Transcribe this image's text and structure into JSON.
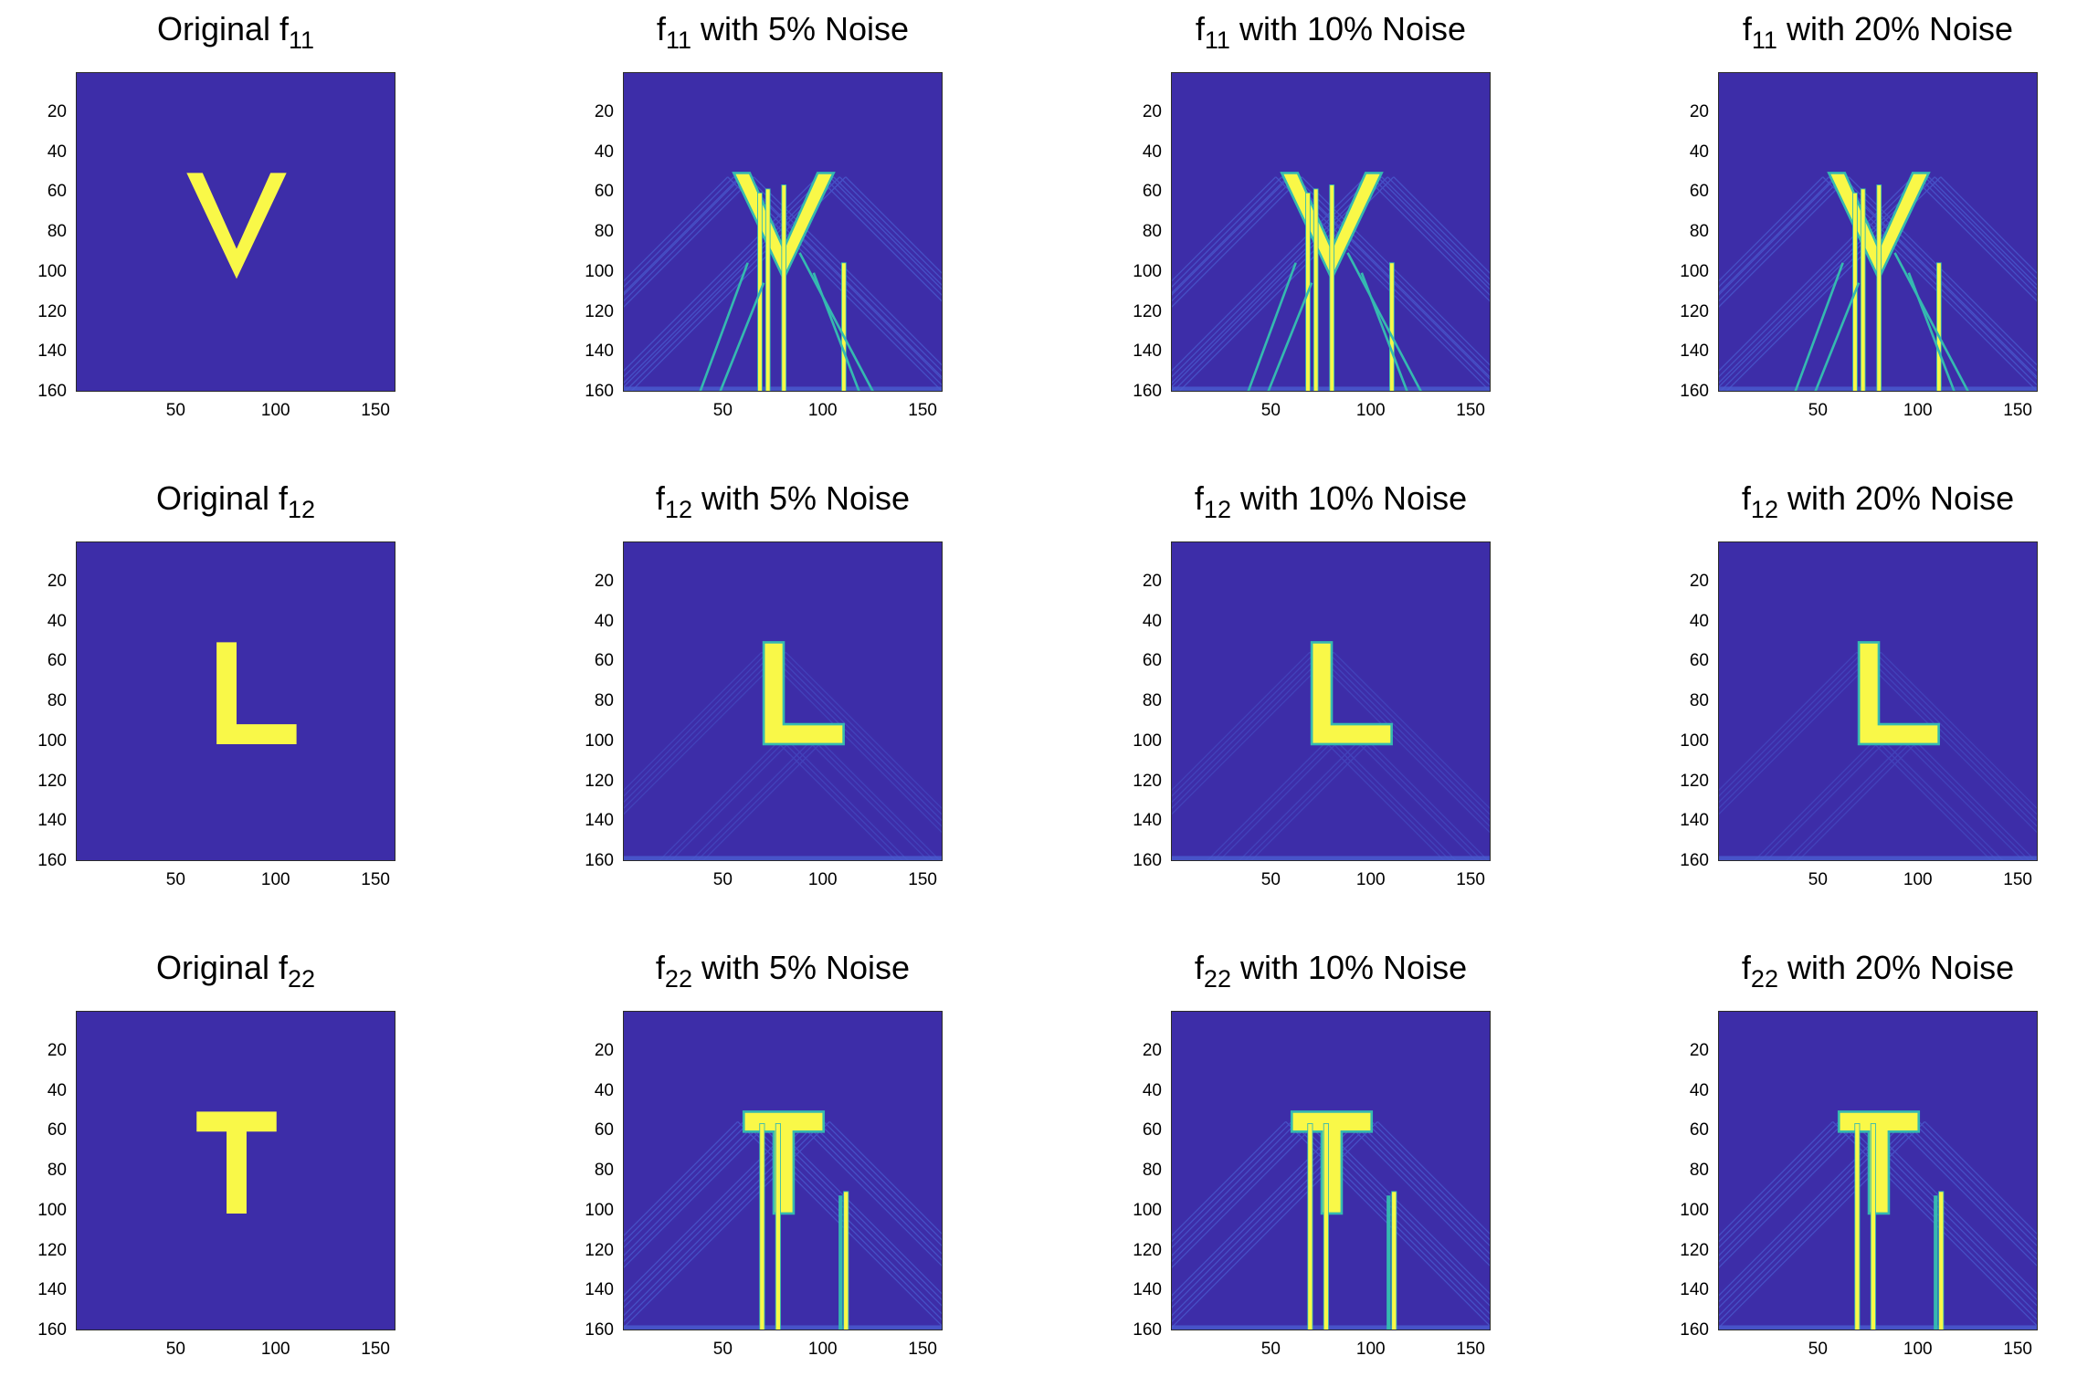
{
  "colors": {
    "background": "#3d2da8",
    "shape": "#f9f848",
    "edge": "#35b9b0",
    "artifact": "#4a5cd0"
  },
  "chart_data": [
    {
      "type": "heatmap",
      "row": 0,
      "col": 0,
      "shape": "V",
      "artifacts": "none",
      "title_pre": "Original f",
      "title_sub": "11",
      "title_post": "",
      "xlim": [
        0,
        160
      ],
      "ylim": [
        0,
        160
      ],
      "xticks": [
        "50",
        "100",
        "150"
      ],
      "yticks": [
        "20",
        "40",
        "60",
        "80",
        "100",
        "120",
        "140",
        "160"
      ]
    },
    {
      "type": "heatmap",
      "row": 0,
      "col": 1,
      "shape": "V",
      "artifacts": "strong",
      "title_pre": "f",
      "title_sub": "11",
      "title_post": " with 5% Noise",
      "xlim": [
        0,
        160
      ],
      "ylim": [
        0,
        160
      ],
      "xticks": [
        "50",
        "100",
        "150"
      ],
      "yticks": [
        "20",
        "40",
        "60",
        "80",
        "100",
        "120",
        "140",
        "160"
      ]
    },
    {
      "type": "heatmap",
      "row": 0,
      "col": 2,
      "shape": "V",
      "artifacts": "strong",
      "title_pre": "f",
      "title_sub": "11",
      "title_post": " with 10% Noise",
      "xlim": [
        0,
        160
      ],
      "ylim": [
        0,
        160
      ],
      "xticks": [
        "50",
        "100",
        "150"
      ],
      "yticks": [
        "20",
        "40",
        "60",
        "80",
        "100",
        "120",
        "140",
        "160"
      ]
    },
    {
      "type": "heatmap",
      "row": 0,
      "col": 3,
      "shape": "V",
      "artifacts": "strong",
      "title_pre": "f",
      "title_sub": "11",
      "title_post": " with 20% Noise",
      "xlim": [
        0,
        160
      ],
      "ylim": [
        0,
        160
      ],
      "xticks": [
        "50",
        "100",
        "150"
      ],
      "yticks": [
        "20",
        "40",
        "60",
        "80",
        "100",
        "120",
        "140",
        "160"
      ]
    },
    {
      "type": "heatmap",
      "row": 1,
      "col": 0,
      "shape": "L",
      "artifacts": "none",
      "title_pre": "Original f",
      "title_sub": "12",
      "title_post": "",
      "xlim": [
        0,
        160
      ],
      "ylim": [
        0,
        160
      ],
      "xticks": [
        "50",
        "100",
        "150"
      ],
      "yticks": [
        "20",
        "40",
        "60",
        "80",
        "100",
        "120",
        "140",
        "160"
      ]
    },
    {
      "type": "heatmap",
      "row": 1,
      "col": 1,
      "shape": "L",
      "artifacts": "faint",
      "title_pre": "f",
      "title_sub": "12",
      "title_post": " with 5% Noise",
      "xlim": [
        0,
        160
      ],
      "ylim": [
        0,
        160
      ],
      "xticks": [
        "50",
        "100",
        "150"
      ],
      "yticks": [
        "20",
        "40",
        "60",
        "80",
        "100",
        "120",
        "140",
        "160"
      ]
    },
    {
      "type": "heatmap",
      "row": 1,
      "col": 2,
      "shape": "L",
      "artifacts": "faint",
      "title_pre": "f",
      "title_sub": "12",
      "title_post": " with 10% Noise",
      "xlim": [
        0,
        160
      ],
      "ylim": [
        0,
        160
      ],
      "xticks": [
        "50",
        "100",
        "150"
      ],
      "yticks": [
        "20",
        "40",
        "60",
        "80",
        "100",
        "120",
        "140",
        "160"
      ]
    },
    {
      "type": "heatmap",
      "row": 1,
      "col": 3,
      "shape": "L",
      "artifacts": "faint",
      "title_pre": "f",
      "title_sub": "12",
      "title_post": " with 20% Noise",
      "xlim": [
        0,
        160
      ],
      "ylim": [
        0,
        160
      ],
      "xticks": [
        "50",
        "100",
        "150"
      ],
      "yticks": [
        "20",
        "40",
        "60",
        "80",
        "100",
        "120",
        "140",
        "160"
      ]
    },
    {
      "type": "heatmap",
      "row": 2,
      "col": 0,
      "shape": "T",
      "artifacts": "none",
      "title_pre": "Original f",
      "title_sub": "22",
      "title_post": "",
      "xlim": [
        0,
        160
      ],
      "ylim": [
        0,
        160
      ],
      "xticks": [
        "50",
        "100",
        "150"
      ],
      "yticks": [
        "20",
        "40",
        "60",
        "80",
        "100",
        "120",
        "140",
        "160"
      ]
    },
    {
      "type": "heatmap",
      "row": 2,
      "col": 1,
      "shape": "T",
      "artifacts": "strong",
      "title_pre": "f",
      "title_sub": "22",
      "title_post": " with 5% Noise",
      "xlim": [
        0,
        160
      ],
      "ylim": [
        0,
        160
      ],
      "xticks": [
        "50",
        "100",
        "150"
      ],
      "yticks": [
        "20",
        "40",
        "60",
        "80",
        "100",
        "120",
        "140",
        "160"
      ]
    },
    {
      "type": "heatmap",
      "row": 2,
      "col": 2,
      "shape": "T",
      "artifacts": "strong",
      "title_pre": "f",
      "title_sub": "22",
      "title_post": " with 10% Noise",
      "xlim": [
        0,
        160
      ],
      "ylim": [
        0,
        160
      ],
      "xticks": [
        "50",
        "100",
        "150"
      ],
      "yticks": [
        "20",
        "40",
        "60",
        "80",
        "100",
        "120",
        "140",
        "160"
      ]
    },
    {
      "type": "heatmap",
      "row": 2,
      "col": 3,
      "shape": "T",
      "artifacts": "strong",
      "title_pre": "f",
      "title_sub": "22",
      "title_post": " with 20% Noise",
      "xlim": [
        0,
        160
      ],
      "ylim": [
        0,
        160
      ],
      "xticks": [
        "50",
        "100",
        "150"
      ],
      "yticks": [
        "20",
        "40",
        "60",
        "80",
        "100",
        "120",
        "140",
        "160"
      ]
    }
  ]
}
